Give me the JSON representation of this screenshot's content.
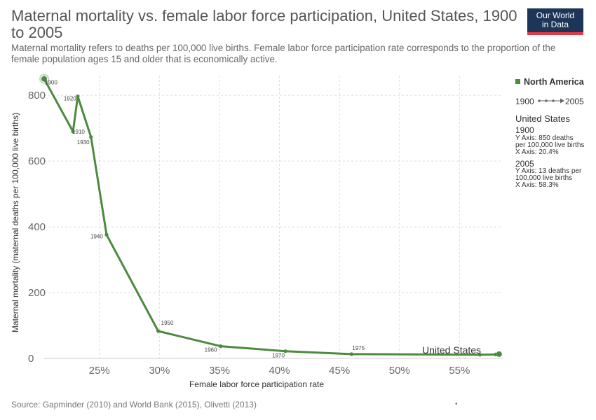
{
  "header": {
    "title": "Maternal mortality vs. female labor force participation, United States, 1900 to 2005",
    "subtitle": "Maternal mortality refers to deaths per 100,000 live births. Female labor force participation rate corresponds to the proportion of the female population ages 15 and older that is economically active.",
    "logo_line1": "Our World",
    "logo_line2": "in Data"
  },
  "legend": {
    "entity": "North America",
    "start_year": "1900",
    "end_year": "2005"
  },
  "info": {
    "country": "United States",
    "year1": "1900",
    "year1_line1": "Y Axis: 850 deaths",
    "year1_line2": "per 100,000 live births",
    "year1_line3": "X Axis: 20.4%",
    "year2": "2005",
    "year2_line1": "Y Axis: 13 deaths per",
    "year2_line2": "100,000 live births",
    "year2_line3": "X Axis: 58.3%"
  },
  "footer": {
    "source": "Source: Gapminder (2010) and World Bank (2015), Olivetti (2013)",
    "dot": "•"
  },
  "colors": {
    "series": "#4c8a3e",
    "grid": "#dddddd"
  },
  "chart_data": {
    "type": "scatter",
    "title": "Maternal mortality vs. female labor force participation, United States, 1900 to 2005",
    "xlabel": "Female labor force participation rate",
    "ylabel": "Maternal mortality (maternal deaths per 100,000 live births)",
    "xlim": [
      20.4,
      58.6
    ],
    "ylim": [
      0,
      860
    ],
    "x_ticks": [
      25,
      30,
      35,
      40,
      45,
      50,
      55
    ],
    "x_tick_labels": [
      "25%",
      "30%",
      "35%",
      "40%",
      "45%",
      "50%",
      "55%"
    ],
    "y_ticks": [
      0,
      200,
      400,
      600,
      800
    ],
    "y_tick_labels": [
      "0",
      "200",
      "400",
      "600",
      "800"
    ],
    "grid": true,
    "connected": true,
    "series": [
      {
        "name": "United States",
        "points": [
          {
            "year": "1900",
            "x": 20.4,
            "y": 850
          },
          {
            "year": "1910",
            "x": 22.8,
            "y": 690
          },
          {
            "year": "1920",
            "x": 23.2,
            "y": 797
          },
          {
            "year": "1930",
            "x": 24.3,
            "y": 673
          },
          {
            "year": "1940",
            "x": 25.6,
            "y": 376
          },
          {
            "year": "1950",
            "x": 29.9,
            "y": 83
          },
          {
            "year": "1960",
            "x": 35.1,
            "y": 37
          },
          {
            "year": "1970",
            "x": 40.5,
            "y": 22
          },
          {
            "year": "1975",
            "x": 46.0,
            "y": 13
          },
          {
            "year": "",
            "x": 56.7,
            "y": 11
          },
          {
            "year": "",
            "x": 58.0,
            "y": 12
          },
          {
            "year": "2005",
            "x": 58.3,
            "y": 13
          }
        ]
      }
    ]
  }
}
